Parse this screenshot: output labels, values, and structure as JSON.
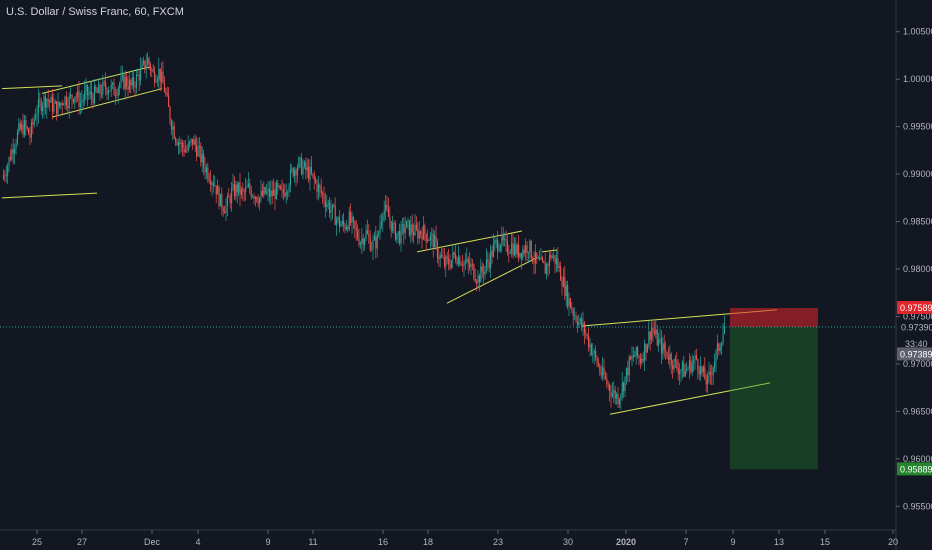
{
  "header": {
    "title": "U.S. Dollar / Swiss Franc, 60, FXCM"
  },
  "chart_data": {
    "type": "candlestick",
    "title": "U.S. Dollar / Swiss Franc, 60, FXCM",
    "y_ticks": [
      "1.00500",
      "1.00000",
      "0.99500",
      "0.99000",
      "0.98500",
      "0.98000",
      "0.97500",
      "0.97000",
      "0.96500",
      "0.96000",
      "0.95500"
    ],
    "y_range": [
      0.9525,
      1.0075
    ],
    "x_ticks": [
      "25",
      "27",
      "Dec",
      "4",
      "9",
      "11",
      "16",
      "18",
      "23",
      "30",
      "2020",
      "7",
      "9",
      "13",
      "15",
      "20"
    ],
    "price_line": {
      "value": 0.97389,
      "label": "0.97389",
      "color": "#26a69a"
    },
    "countdown": "33:40",
    "current_price": "0.97390",
    "stop_level": {
      "value": 0.97589,
      "label": "0.97589",
      "color": "#e0252c"
    },
    "target_level": {
      "value": 0.95889,
      "label": "0.95889",
      "color": "#26862f"
    },
    "colors": {
      "up": "#26a69a",
      "down": "#ef5350",
      "trendline": "#d4e157",
      "background": "#131722"
    },
    "close_path": [
      [
        0,
        0.9895
      ],
      [
        4,
        0.991
      ],
      [
        8,
        0.993
      ],
      [
        12,
        0.9945
      ],
      [
        16,
        0.995
      ],
      [
        20,
        0.994
      ],
      [
        24,
        0.9965
      ],
      [
        28,
        0.9975
      ],
      [
        32,
        0.998
      ],
      [
        36,
        0.9972
      ],
      [
        40,
        0.997
      ],
      [
        44,
        0.998
      ],
      [
        48,
        0.9978
      ],
      [
        52,
        0.9985
      ],
      [
        56,
        0.9975
      ],
      [
        60,
        0.9985
      ],
      [
        64,
        0.9982
      ],
      [
        68,
        0.9985
      ],
      [
        72,
        0.999
      ],
      [
        76,
        0.9992
      ],
      [
        80,
        0.9988
      ],
      [
        84,
        0.9995
      ],
      [
        88,
        0.9998
      ],
      [
        92,
        0.9992
      ],
      [
        96,
        1.0
      ],
      [
        100,
        1.001
      ],
      [
        104,
        1.002
      ],
      [
        108,
        1.0005
      ],
      [
        112,
        1.0008
      ],
      [
        116,
        0.999
      ],
      [
        120,
        0.996
      ],
      [
        124,
        0.994
      ],
      [
        128,
        0.993
      ],
      [
        132,
        0.9925
      ],
      [
        136,
        0.9935
      ],
      [
        140,
        0.9925
      ],
      [
        144,
        0.991
      ],
      [
        148,
        0.99
      ],
      [
        152,
        0.989
      ],
      [
        156,
        0.987
      ],
      [
        160,
        0.9865
      ],
      [
        164,
        0.988
      ],
      [
        168,
        0.9885
      ],
      [
        172,
        0.9878
      ],
      [
        176,
        0.9885
      ],
      [
        180,
        0.988
      ],
      [
        184,
        0.9875
      ],
      [
        188,
        0.988
      ],
      [
        192,
        0.9878
      ],
      [
        196,
        0.9882
      ],
      [
        200,
        0.9878
      ],
      [
        204,
        0.989
      ],
      [
        208,
        0.9905
      ],
      [
        212,
        0.991
      ],
      [
        216,
        0.9905
      ],
      [
        220,
        0.99
      ],
      [
        224,
        0.989
      ],
      [
        228,
        0.988
      ],
      [
        232,
        0.987
      ],
      [
        236,
        0.986
      ],
      [
        240,
        0.985
      ],
      [
        244,
        0.9845
      ],
      [
        248,
        0.9852
      ],
      [
        252,
        0.984
      ],
      [
        256,
        0.983
      ],
      [
        260,
        0.9838
      ],
      [
        264,
        0.9825
      ],
      [
        268,
        0.983
      ],
      [
        272,
        0.9865
      ],
      [
        276,
        0.9855
      ],
      [
        280,
        0.984
      ],
      [
        284,
        0.9835
      ],
      [
        288,
        0.9845
      ],
      [
        292,
        0.9842
      ],
      [
        296,
        0.9838
      ],
      [
        300,
        0.984
      ],
      [
        304,
        0.9835
      ],
      [
        308,
        0.983
      ],
      [
        312,
        0.9815
      ],
      [
        316,
        0.9805
      ],
      [
        320,
        0.9808
      ],
      [
        324,
        0.9815
      ],
      [
        328,
        0.981
      ],
      [
        332,
        0.9805
      ],
      [
        336,
        0.98
      ],
      [
        340,
        0.979
      ],
      [
        344,
        0.98
      ],
      [
        348,
        0.981
      ],
      [
        352,
        0.9825
      ],
      [
        356,
        0.983
      ],
      [
        360,
        0.9822
      ],
      [
        364,
        0.9825
      ],
      [
        368,
        0.9818
      ],
      [
        372,
        0.982
      ],
      [
        376,
        0.9825
      ],
      [
        380,
        0.981
      ],
      [
        384,
        0.9805
      ],
      [
        388,
        0.98
      ],
      [
        392,
        0.9815
      ],
      [
        396,
        0.9808
      ],
      [
        400,
        0.979
      ],
      [
        404,
        0.977
      ],
      [
        408,
        0.9755
      ],
      [
        412,
        0.9745
      ],
      [
        416,
        0.9735
      ],
      [
        420,
        0.972
      ],
      [
        424,
        0.9705
      ],
      [
        428,
        0.969
      ],
      [
        432,
        0.968
      ],
      [
        436,
        0.967
      ],
      [
        440,
        0.9665
      ],
      [
        444,
        0.968
      ],
      [
        448,
        0.97
      ],
      [
        452,
        0.971
      ],
      [
        456,
        0.9705
      ],
      [
        460,
        0.972
      ],
      [
        464,
        0.9738
      ],
      [
        468,
        0.9725
      ],
      [
        472,
        0.9715
      ],
      [
        476,
        0.971
      ],
      [
        480,
        0.97
      ],
      [
        484,
        0.9695
      ],
      [
        488,
        0.9692
      ],
      [
        492,
        0.97
      ],
      [
        496,
        0.9705
      ],
      [
        500,
        0.969
      ],
      [
        504,
        0.968
      ],
      [
        508,
        0.97
      ],
      [
        512,
        0.9718
      ],
      [
        516,
        0.9739
      ]
    ],
    "trendlines": [
      [
        [
          0,
          0.999
        ],
        [
          60,
          0.9993
        ]
      ],
      [
        [
          0,
          0.9875
        ],
        [
          95,
          0.988
        ]
      ],
      [
        [
          40,
          0.9985
        ],
        [
          148,
          1.0013
        ]
      ],
      [
        [
          50,
          0.996
        ],
        [
          160,
          0.999
        ]
      ],
      [
        [
          415,
          0.9818
        ],
        [
          520,
          0.984
        ]
      ],
      [
        [
          445,
          0.9764
        ],
        [
          535,
          0.9812
        ]
      ],
      [
        [
          540,
          0.9818
        ],
        [
          555,
          0.982
        ]
      ],
      [
        [
          580,
          0.974
        ],
        [
          775,
          0.9757
        ]
      ],
      [
        [
          608,
          0.9647
        ],
        [
          768,
          0.968
        ]
      ]
    ],
    "grid": false,
    "legend": "none"
  }
}
